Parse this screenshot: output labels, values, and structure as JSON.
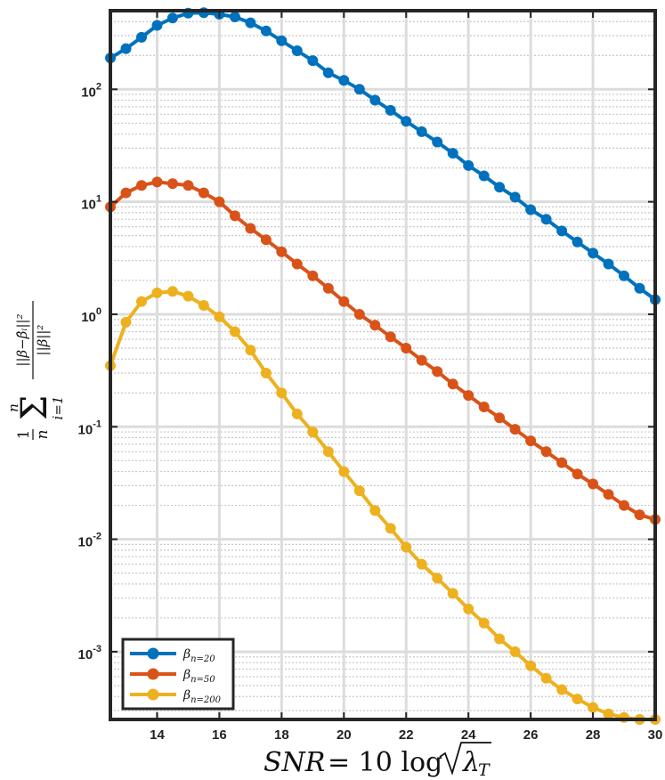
{
  "chart_data": {
    "type": "line",
    "yscale": "log",
    "xlim": [
      12.5,
      30
    ],
    "ylim": [
      0.00025,
      500
    ],
    "grid": true,
    "legend_position": "bottom-left",
    "xticks": [
      14,
      16,
      18,
      20,
      22,
      24,
      26,
      28,
      30
    ],
    "xtick_labels": [
      "14",
      "16",
      "18",
      "20",
      "22",
      "24",
      "26",
      "28",
      "30"
    ],
    "yticks": [
      0.001,
      0.01,
      0.1,
      1,
      10,
      100
    ],
    "ytick_labels": [
      {
        "base": "10",
        "exp": "-3"
      },
      {
        "base": "10",
        "exp": "-2"
      },
      {
        "base": "10",
        "exp": "-1"
      },
      {
        "base": "10",
        "exp": "0"
      },
      {
        "base": "10",
        "exp": "1"
      },
      {
        "base": "10",
        "exp": "2"
      }
    ],
    "xlabel": "SNR = 10 log √λ_T",
    "ylabel": "(1/n) Σ_{i=1}^{n} ||β − β̂_i||² / ||β||²",
    "x": [
      12.5,
      13.0,
      13.5,
      14.0,
      14.5,
      15.0,
      15.5,
      16.0,
      16.5,
      17.0,
      17.5,
      18.0,
      18.5,
      19.0,
      19.5,
      20.0,
      20.5,
      21.0,
      21.5,
      22.0,
      22.5,
      23.0,
      23.5,
      24.0,
      24.5,
      25.0,
      25.5,
      26.0,
      26.5,
      27.0,
      27.5,
      28.0,
      28.5,
      29.0,
      29.5,
      30.0
    ],
    "series": [
      {
        "name": "β_{n=20}",
        "color": "#0072BD",
        "values": [
          190,
          230,
          290,
          370,
          430,
          475,
          480,
          465,
          440,
          390,
          330,
          270,
          220,
          180,
          140,
          120,
          100,
          80,
          65,
          52,
          42,
          34,
          27,
          21,
          17,
          13.5,
          11,
          8.5,
          7,
          5.5,
          4.4,
          3.5,
          2.8,
          2.2,
          1.7,
          1.35
        ]
      },
      {
        "name": "β_{n=50}",
        "color": "#D95319",
        "values": [
          9,
          12,
          14,
          15,
          14.5,
          14,
          12,
          10,
          7.5,
          5.8,
          4.6,
          3.6,
          2.8,
          2.2,
          1.7,
          1.3,
          1.0,
          0.8,
          0.63,
          0.5,
          0.39,
          0.31,
          0.24,
          0.19,
          0.15,
          0.12,
          0.095,
          0.075,
          0.06,
          0.048,
          0.038,
          0.031,
          0.025,
          0.02,
          0.0165,
          0.015
        ]
      },
      {
        "name": "β_{n=200}",
        "color": "#EDB120",
        "values": [
          0.35,
          0.85,
          1.3,
          1.55,
          1.6,
          1.45,
          1.2,
          0.95,
          0.7,
          0.48,
          0.3,
          0.2,
          0.13,
          0.09,
          0.06,
          0.04,
          0.027,
          0.018,
          0.0125,
          0.0085,
          0.006,
          0.0045,
          0.0033,
          0.0024,
          0.0018,
          0.0013,
          0.001,
          0.00075,
          0.00058,
          0.00046,
          0.00038,
          0.00032,
          0.00028,
          0.00026,
          0.00025,
          0.00025
        ]
      }
    ]
  }
}
